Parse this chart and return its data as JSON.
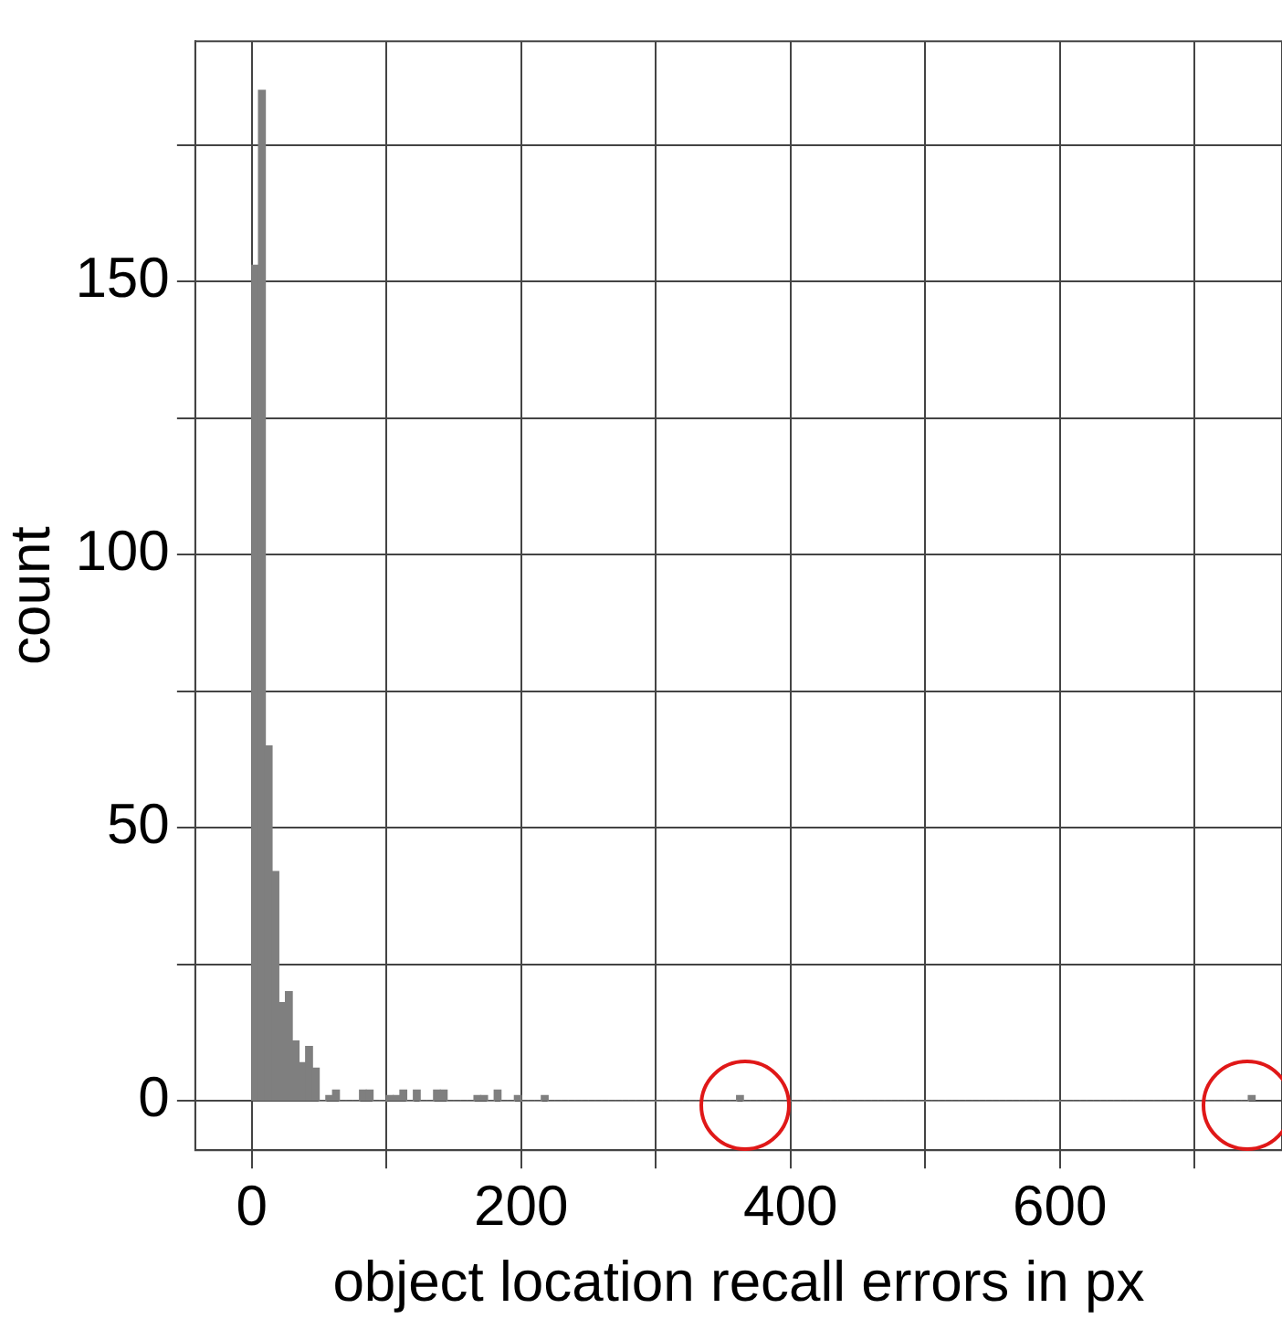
{
  "chart_data": {
    "type": "histogram",
    "xlabel": "object location recall errors in px",
    "ylabel": "count",
    "bins": [
      0,
      5,
      10,
      15,
      20,
      25,
      30,
      35,
      40,
      45,
      50,
      55,
      60,
      65,
      70,
      75,
      80,
      85,
      90,
      95,
      100,
      105,
      110,
      115,
      120,
      125,
      130,
      135,
      140,
      145,
      150,
      155,
      160,
      165,
      170,
      175,
      180,
      185,
      190,
      195,
      200,
      205,
      210,
      215,
      220,
      225,
      230,
      235,
      240,
      245,
      250,
      255,
      260,
      265,
      270,
      275,
      280,
      285,
      290,
      295,
      300,
      305,
      310,
      315,
      320,
      325,
      330,
      335,
      340,
      345,
      350,
      355,
      360,
      365,
      370,
      375,
      380,
      385,
      390,
      395,
      400,
      405,
      410,
      415,
      420,
      425,
      430,
      435,
      440,
      445,
      450,
      455,
      460,
      465,
      470,
      475,
      480,
      485,
      490,
      495,
      500,
      505,
      510,
      515,
      520,
      525,
      530,
      535,
      540,
      545,
      550,
      555,
      560,
      565,
      570,
      575,
      580,
      585,
      590,
      595,
      600,
      605,
      610,
      615,
      620,
      625,
      630,
      635,
      640,
      645,
      650,
      655,
      660,
      665,
      670,
      675,
      680,
      685,
      690,
      695,
      700,
      705,
      710,
      715,
      720,
      725,
      730,
      735,
      740,
      745
    ],
    "values": [
      153,
      185,
      65,
      42,
      18,
      20,
      11,
      7,
      10,
      6,
      0,
      1,
      2,
      0,
      0,
      0,
      2,
      2,
      0,
      0,
      1,
      1,
      2,
      0,
      2,
      0,
      0,
      2,
      2,
      0,
      0,
      0,
      0,
      1,
      1,
      0,
      2,
      0,
      0,
      1,
      0,
      0,
      0,
      1,
      0,
      0,
      0,
      0,
      0,
      0,
      0,
      0,
      0,
      0,
      0,
      0,
      0,
      0,
      0,
      0,
      0,
      0,
      0,
      0,
      0,
      0,
      0,
      0,
      0,
      0,
      0,
      0,
      1,
      0,
      0,
      0,
      0,
      0,
      0,
      0,
      0,
      0,
      0,
      0,
      0,
      0,
      0,
      0,
      0,
      0,
      0,
      0,
      0,
      0,
      0,
      0,
      0,
      0,
      0,
      0,
      0,
      0,
      0,
      0,
      0,
      0,
      0,
      0,
      0,
      0,
      0,
      0,
      0,
      0,
      0,
      0,
      0,
      0,
      0,
      0,
      0,
      0,
      0,
      0,
      0,
      0,
      0,
      0,
      0,
      0,
      0,
      0,
      0,
      0,
      0,
      0,
      0,
      0,
      0,
      0,
      0,
      0,
      0,
      0,
      0,
      0,
      0,
      0,
      1
    ],
    "color": "#7f7f7f",
    "xlim": [
      -42,
      765
    ],
    "ylim": [
      -9,
      194
    ],
    "xticks": [
      0,
      {
        "value": 100,
        "label": null
      },
      200,
      {
        "value": 300,
        "label": null
      },
      400,
      {
        "value": 500,
        "label": null
      },
      600,
      {
        "value": 700,
        "label": null
      }
    ],
    "yticks": [
      0,
      {
        "value": 25,
        "label": null
      },
      50,
      {
        "value": 75,
        "label": null
      },
      100,
      {
        "value": 125,
        "label": null
      },
      150,
      {
        "value": 175,
        "label": null
      }
    ],
    "grid": true
  }
}
